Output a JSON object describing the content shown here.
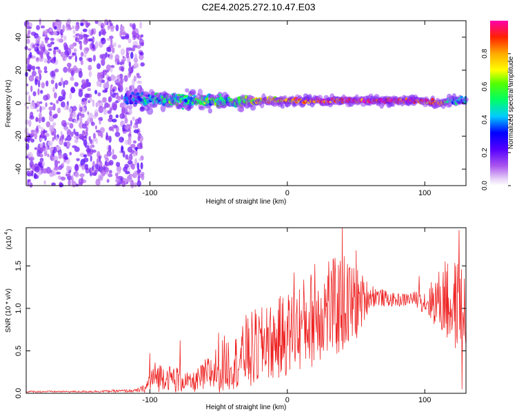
{
  "figure": {
    "title": "C2E4.2025.272.10.47.E03"
  },
  "chart_data": [
    {
      "type": "heatmap",
      "xlabel": "Height of straight line (km)",
      "ylabel": "Frequency (Hz)",
      "xlim": [
        -190,
        130
      ],
      "ylim": [
        -50,
        50
      ],
      "xticks": [
        -100,
        0,
        100
      ],
      "yticks": [
        -40,
        -20,
        0,
        20,
        40
      ],
      "grid": false,
      "noise_region": {
        "x_from": -190,
        "x_to": -105,
        "f_from": -50,
        "f_to": 50,
        "amplitude": [
          0.05,
          0.2
        ]
      },
      "signal_track": [
        {
          "x": -118,
          "f": 3.0,
          "width": 10,
          "amplitude": 0.35
        },
        {
          "x": -100,
          "f": 2.5,
          "width": 12,
          "amplitude": 0.4
        },
        {
          "x": -80,
          "f": 2.0,
          "width": 12,
          "amplitude": 0.45
        },
        {
          "x": -60,
          "f": 1.5,
          "width": 11,
          "amplitude": 0.5
        },
        {
          "x": -40,
          "f": 1.0,
          "width": 9,
          "amplitude": 0.5
        },
        {
          "x": -20,
          "f": 1.5,
          "width": 6,
          "amplitude": 0.7
        },
        {
          "x": 0,
          "f": 1.5,
          "width": 5,
          "amplitude": 0.8
        },
        {
          "x": 20,
          "f": 1.5,
          "width": 5,
          "amplitude": 0.85
        },
        {
          "x": 40,
          "f": 1.5,
          "width": 4,
          "amplitude": 0.9
        },
        {
          "x": 60,
          "f": 1.5,
          "width": 4,
          "amplitude": 0.95
        },
        {
          "x": 80,
          "f": 1.5,
          "width": 4,
          "amplitude": 0.95
        },
        {
          "x": 97,
          "f": 1.5,
          "width": 4,
          "amplitude": 0.9
        },
        {
          "x": 110,
          "f": 0.0,
          "width": 4,
          "amplitude": 0.85
        },
        {
          "x": 120,
          "f": 1.5,
          "width": 6,
          "amplitude": 0.4
        },
        {
          "x": 130,
          "f": 1.5,
          "width": 8,
          "amplitude": 0.35
        }
      ],
      "colorbar": {
        "label": "Normalized spectral amplitude",
        "range": [
          0,
          1
        ],
        "ticks": [
          "0.0",
          "0.2",
          "0.4",
          "0.6",
          "0.8"
        ],
        "tick_values": [
          0.0,
          0.2,
          0.4,
          0.6,
          0.8
        ]
      }
    },
    {
      "type": "line",
      "xlabel": "Height of straight line (km)",
      "ylabel": "SNR (10 * v/v)",
      "yscale_label": "(x10",
      "yscale_exp": "4",
      "xlim": [
        -190,
        130
      ],
      "ylim": [
        0,
        1.95
      ],
      "xticks": [
        -100,
        0,
        100
      ],
      "yticks": [
        0.0,
        0.5,
        1.0,
        1.5
      ],
      "ytick_labels": [
        "0.0",
        "0.5",
        "1.0",
        "1.5"
      ],
      "grid": false,
      "series": [
        {
          "name": "SNR",
          "color": "#ee2222",
          "x": [
            -190,
            -150,
            -110,
            -103,
            -100,
            -95,
            -90,
            -85,
            -80,
            -75,
            -70,
            -65,
            -60,
            -55,
            -50,
            -45,
            -40,
            -35,
            -30,
            -25,
            -20,
            -15,
            -10,
            -5,
            0,
            5,
            10,
            15,
            20,
            25,
            30,
            35,
            40,
            45,
            50,
            55,
            60,
            65,
            70,
            75,
            80,
            85,
            90,
            95,
            100,
            105,
            110,
            115,
            120,
            125,
            130
          ],
          "mean": [
            0.02,
            0.02,
            0.03,
            0.06,
            0.15,
            0.2,
            0.2,
            0.18,
            0.17,
            0.15,
            0.12,
            0.15,
            0.2,
            0.25,
            0.3,
            0.35,
            0.35,
            0.4,
            0.45,
            0.5,
            0.55,
            0.6,
            0.6,
            0.65,
            0.7,
            0.75,
            0.8,
            0.85,
            0.9,
            0.95,
            1.0,
            1.0,
            1.05,
            1.05,
            1.05,
            1.1,
            1.15,
            1.15,
            1.12,
            1.1,
            1.1,
            1.1,
            1.12,
            1.1,
            1.08,
            1.08,
            1.1,
            1.05,
            1.05,
            1.0,
            1.0
          ],
          "spread": [
            0.01,
            0.01,
            0.02,
            0.05,
            0.15,
            0.2,
            0.15,
            0.15,
            0.2,
            0.12,
            0.1,
            0.15,
            0.2,
            0.25,
            0.3,
            0.35,
            0.3,
            0.35,
            0.4,
            0.5,
            0.45,
            0.45,
            0.45,
            0.5,
            0.5,
            0.5,
            0.55,
            0.55,
            0.6,
            0.55,
            0.6,
            0.6,
            0.6,
            0.55,
            0.45,
            0.3,
            0.15,
            0.12,
            0.1,
            0.08,
            0.08,
            0.08,
            0.08,
            0.1,
            0.15,
            0.25,
            0.35,
            0.45,
            0.55,
            0.55,
            0.5
          ],
          "peaks": [
            {
              "x": -100,
              "y": 0.47
            },
            {
              "x": -78,
              "y": 0.62
            },
            {
              "x": -50,
              "y": 0.71
            },
            {
              "x": -30,
              "y": 0.92
            },
            {
              "x": -15,
              "y": 1.0
            },
            {
              "x": 5,
              "y": 1.42
            },
            {
              "x": 20,
              "y": 1.52
            },
            {
              "x": 30,
              "y": 1.55
            },
            {
              "x": 40,
              "y": 1.95
            },
            {
              "x": 50,
              "y": 1.68
            },
            {
              "x": 96,
              "y": 1.38
            },
            {
              "x": 115,
              "y": 1.55
            },
            {
              "x": 125,
              "y": 1.92
            },
            {
              "x": 127,
              "y": 0.05
            }
          ]
        }
      ]
    }
  ]
}
